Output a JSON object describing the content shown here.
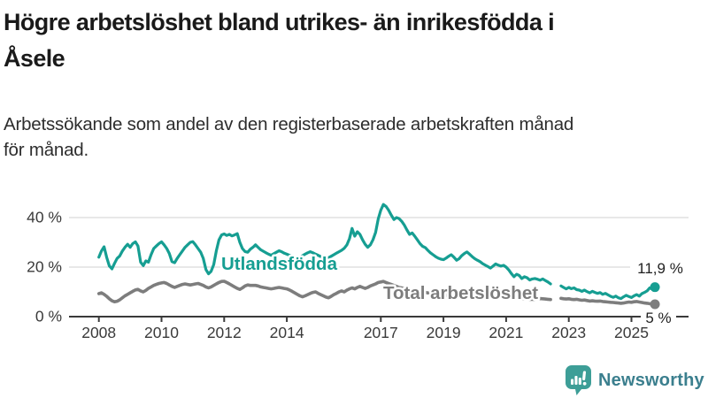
{
  "header": {
    "title_lines": [
      "Högre arbetslöshet bland utrikes- än inrikesfödda i",
      "Åsele"
    ],
    "subtitle_lines": [
      "Arbetssökande som andel av den registerbaserade arbetskraften månad",
      "för månad."
    ]
  },
  "footer": {
    "brand": "Newsworthy",
    "logo_icon": "bar-chart-speech-bubble-icon"
  },
  "colors": {
    "series_foreign_born": "#169e92",
    "series_total": "#7d7d7d",
    "axis": "#3a3a3a",
    "gridline": "#d9d9d9",
    "logo_teal": "#3d9e97",
    "brand_text": "#3b7f8e"
  },
  "chart_data": {
    "type": "line",
    "x_unit": "year",
    "xlim": [
      2007.6,
      2026.3
    ],
    "ylim": [
      0,
      48
    ],
    "grid": "horizontal",
    "yticks": [
      {
        "value": 0,
        "label": "0 %"
      },
      {
        "value": 20,
        "label": "20 %"
      },
      {
        "value": 40,
        "label": "40 %"
      }
    ],
    "xticks": [
      {
        "value": 2008,
        "label": "2008"
      },
      {
        "value": 2010,
        "label": "2010"
      },
      {
        "value": 2012,
        "label": "2012"
      },
      {
        "value": 2014,
        "label": "2014"
      },
      {
        "value": 2017,
        "label": "2017"
      },
      {
        "value": 2019,
        "label": "2019"
      },
      {
        "value": 2021,
        "label": "2021"
      },
      {
        "value": 2023,
        "label": "2023"
      },
      {
        "value": 2025,
        "label": "2025"
      }
    ],
    "series": [
      {
        "name": "Utlandsfödda",
        "color": "#169e92",
        "end_label": "11,9 %",
        "end_value": 11.9,
        "points_per_year": 12,
        "segments": [
          {
            "start_year": 2008.0,
            "values": [
              24.0,
              26.5,
              28.2,
              24.0,
              20.5,
              19.3,
              21.5,
              23.5,
              24.5,
              26.5,
              28.0,
              29.2,
              28.0,
              29.5,
              30.2,
              28.5,
              22.0,
              20.6,
              22.5,
              22.0,
              25.0,
              27.5,
              28.5,
              29.5,
              30.2,
              29.0,
              27.5,
              25.5,
              22.2,
              21.8,
              23.5,
              25.0,
              26.5,
              28.0,
              29.0,
              30.0,
              30.3,
              29.0,
              27.5,
              26.0,
              23.5,
              19.0,
              17.3,
              18.3,
              21.0,
              26.5,
              31.0,
              33.0,
              33.4,
              32.8,
              33.2,
              32.6,
              33.0,
              33.5,
              30.0,
              27.5,
              26.3,
              26.0,
              27.2,
              28.0,
              29.0,
              28.0,
              27.0,
              26.4,
              25.8,
              25.2,
              24.8,
              25.4,
              26.0,
              26.6,
              26.2,
              25.6,
              25.2,
              24.8,
              24.4,
              24.0,
              23.6,
              24.0,
              24.6,
              25.2,
              25.8,
              26.2,
              25.8,
              25.2,
              24.8,
              24.2,
              23.8,
              23.4,
              23.8,
              24.4,
              25.0,
              25.6,
              26.2,
              26.8,
              27.6,
              29.0,
              31.5,
              35.6,
              32.5,
              34.3,
              33.2,
              31.0,
              29.2,
              28.0,
              29.0,
              31.0,
              34.0,
              39.5,
              43.0,
              45.3,
              44.5,
              43.0,
              41.0,
              39.2,
              40.0,
              39.6,
              38.5,
              37.0,
              35.0,
              33.2,
              33.8,
              32.5,
              31.0,
              29.5,
              28.4,
              27.9,
              26.8,
              25.8,
              25.0,
              24.2,
              23.6,
              23.2,
              23.0,
              23.6,
              24.4,
              25.0,
              24.0,
              22.8,
              23.4,
              24.6,
              25.5,
              26.1,
              25.2,
              24.2,
              23.4,
              22.8,
              22.2,
              21.4,
              20.8,
              20.2,
              19.6,
              20.4,
              21.3,
              20.8,
              20.4,
              20.7,
              20.0,
              18.9,
              17.4,
              16.1,
              17.1,
              16.6,
              15.4,
              16.1,
              15.7,
              14.8,
              15.2,
              15.4,
              15.1,
              14.7,
              15.2,
              14.6,
              14.0,
              13.2
            ]
          },
          {
            "start_year": 2022.75,
            "values": [
              12.4,
              11.8,
              11.2,
              11.8,
              11.3,
              11.6,
              10.9,
              10.7,
              10.2,
              10.7,
              10.1,
              9.6,
              10.2,
              9.8,
              9.4,
              9.7,
              9.0,
              9.4,
              8.8,
              8.2,
              7.8,
              8.3,
              7.6,
              7.3,
              8.0,
              8.6,
              8.1,
              7.7,
              8.4,
              8.9,
              8.3,
              9.3,
              9.8,
              10.4,
              11.6,
              11.1,
              11.9
            ]
          }
        ]
      },
      {
        "name": "Total arbetslöshet",
        "color": "#7d7d7d",
        "end_label": "5 %",
        "end_value": 5.0,
        "points_per_year": 12,
        "segments": [
          {
            "start_year": 2008.0,
            "values": [
              9.3,
              9.6,
              9.0,
              8.2,
              7.2,
              6.4,
              6.0,
              6.2,
              6.8,
              7.6,
              8.4,
              9.0,
              9.6,
              10.2,
              10.8,
              11.0,
              10.4,
              10.0,
              10.6,
              11.4,
              12.0,
              12.6,
              13.0,
              13.4,
              13.6,
              13.8,
              13.4,
              12.8,
              12.2,
              11.8,
              12.2,
              12.6,
              13.0,
              13.2,
              13.0,
              12.8,
              13.0,
              13.2,
              13.4,
              13.0,
              12.6,
              12.0,
              11.6,
              12.0,
              12.6,
              13.2,
              13.8,
              14.2,
              14.3,
              13.8,
              13.2,
              12.6,
              12.0,
              11.4,
              11.0,
              11.6,
              12.4,
              12.8,
              12.6,
              12.6,
              12.6,
              12.4,
              12.0,
              11.8,
              11.6,
              11.4,
              11.2,
              11.4,
              11.6,
              11.8,
              11.6,
              11.4,
              11.2,
              10.8,
              10.2,
              9.6,
              9.0,
              8.4,
              8.0,
              8.4,
              8.9,
              9.4,
              9.8,
              10.0,
              9.4,
              8.9,
              8.4,
              7.9,
              7.6,
              8.2,
              8.9,
              9.4,
              10.0,
              10.4,
              10.0,
              10.7,
              11.2,
              11.6,
              11.2,
              11.8,
              12.2,
              11.8,
              11.4,
              11.8,
              12.4,
              12.8,
              13.2,
              13.8,
              14.0,
              14.2,
              13.8,
              13.4,
              13.0,
              12.6,
              12.2,
              11.8,
              11.6,
              11.4,
              11.2,
              11.0,
              10.8,
              10.6,
              10.4,
              10.2,
              10.0,
              9.8,
              9.6,
              9.4,
              9.2,
              9.0,
              8.9,
              8.8,
              8.7,
              8.6,
              8.5,
              8.4,
              8.3,
              8.2,
              8.3,
              8.4,
              8.5,
              8.6,
              8.7,
              8.8,
              8.9,
              9.0,
              9.2,
              9.6,
              9.8,
              9.6,
              9.4,
              9.2,
              9.0,
              8.8,
              8.6,
              8.4,
              8.2,
              8.0,
              7.8,
              7.6,
              7.5,
              7.4,
              7.3,
              7.2,
              7.1,
              7.0,
              7.0,
              7.0,
              7.2,
              7.3,
              7.2,
              7.1,
              7.0,
              6.9
            ]
          },
          {
            "start_year": 2022.75,
            "values": [
              7.4,
              7.2,
              7.1,
              7.2,
              7.0,
              6.9,
              7.0,
              6.8,
              6.6,
              6.7,
              6.5,
              6.3,
              6.4,
              6.3,
              6.2,
              6.3,
              6.1,
              6.0,
              5.9,
              5.8,
              5.7,
              5.6,
              5.5,
              5.4,
              5.5,
              5.7,
              5.9,
              5.8,
              6.0,
              6.1,
              5.9,
              5.7,
              5.5,
              5.4,
              5.2,
              5.1,
              5.0
            ]
          }
        ]
      }
    ]
  }
}
